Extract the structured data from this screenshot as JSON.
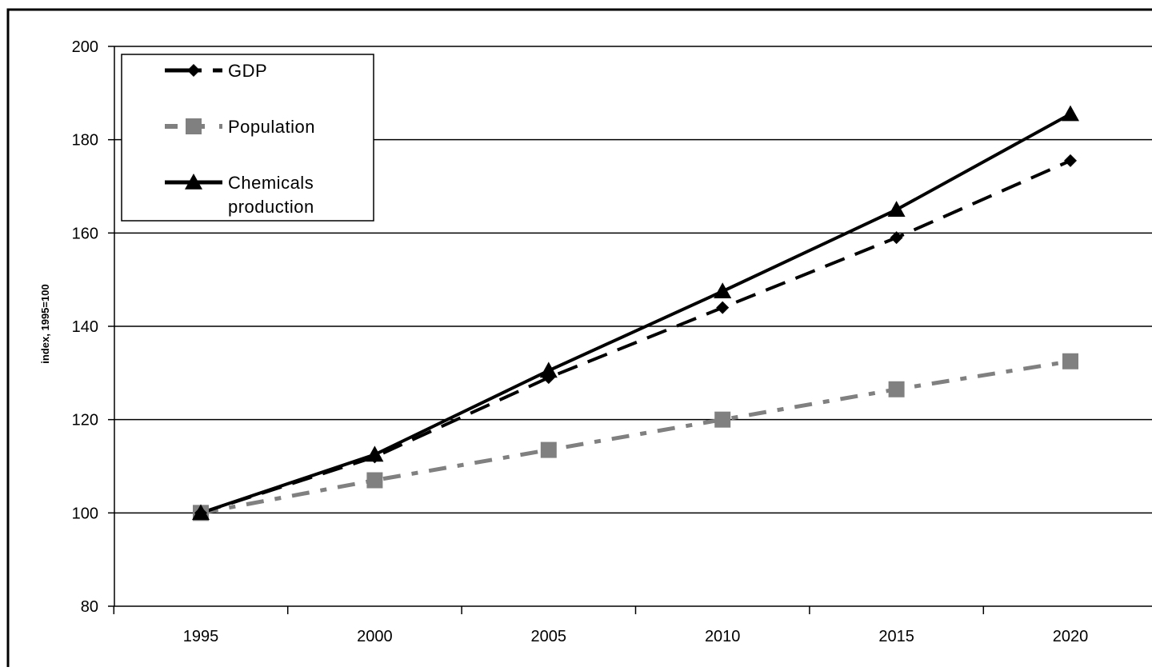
{
  "chart_data": {
    "type": "line",
    "title": "",
    "xlabel": "",
    "ylabel": "index, 1995=100",
    "categories": [
      "1995",
      "2000",
      "2005",
      "2010",
      "2015",
      "2020"
    ],
    "x": [
      1995,
      2000,
      2005,
      2010,
      2015,
      2020
    ],
    "ylim": [
      80,
      200
    ],
    "yticks": [
      80,
      100,
      120,
      140,
      160,
      180,
      200
    ],
    "grid": true,
    "legend_position": "top-left",
    "series": [
      {
        "name": "GDP",
        "values": [
          100,
          112,
          129,
          144,
          159,
          175.5
        ],
        "color": "#000000",
        "line_style": "dashed",
        "marker": "diamond"
      },
      {
        "name": "Population",
        "values": [
          100,
          107,
          113.5,
          120,
          126.5,
          132.5
        ],
        "color": "#808080",
        "line_style": "dash-dot",
        "marker": "square"
      },
      {
        "name": "Chemicals production",
        "values": [
          100,
          112.5,
          130.5,
          147.5,
          165,
          185.5
        ],
        "color": "#000000",
        "line_style": "solid",
        "marker": "triangle"
      }
    ],
    "legend": {
      "entries": [
        "GDP",
        "Population",
        "Chemicals production"
      ],
      "entry_lines": [
        [
          "GDP"
        ],
        [
          "Population"
        ],
        [
          "Chemicals",
          "production"
        ]
      ]
    }
  }
}
